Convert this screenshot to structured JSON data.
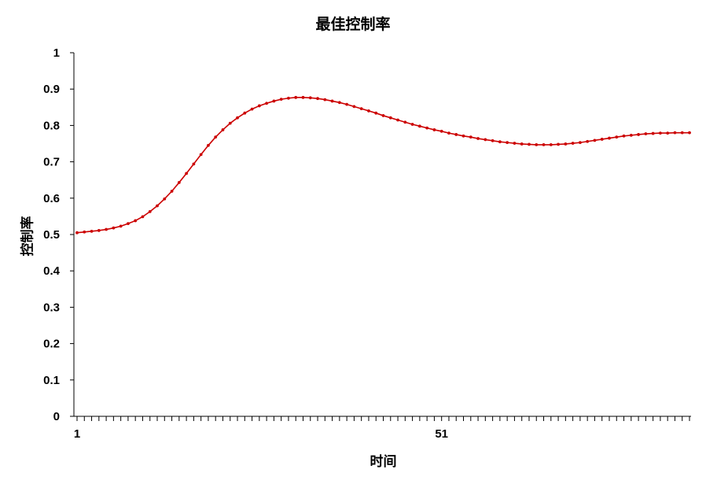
{
  "chart_data": {
    "type": "line",
    "title": "最佳控制率",
    "xlabel": "时间",
    "ylabel": "控制率",
    "ylim": [
      0,
      1
    ],
    "y_ticks": [
      "0",
      "0.1",
      "0.2",
      "0.3",
      "0.4",
      "0.5",
      "0.6",
      "0.7",
      "0.8",
      "0.9",
      "1"
    ],
    "x_ticks_labeled": [
      "1",
      "51"
    ],
    "xlim": [
      1,
      85
    ],
    "grid": false,
    "series": [
      {
        "color": "#cc0000",
        "x": [
          1,
          2,
          3,
          4,
          5,
          6,
          7,
          8,
          9,
          10,
          11,
          12,
          13,
          14,
          15,
          16,
          17,
          18,
          19,
          20,
          21,
          22,
          23,
          24,
          25,
          26,
          27,
          28,
          29,
          30,
          31,
          32,
          33,
          34,
          35,
          36,
          37,
          38,
          39,
          40,
          41,
          42,
          43,
          44,
          45,
          46,
          47,
          48,
          49,
          50,
          51,
          52,
          53,
          54,
          55,
          56,
          57,
          58,
          59,
          60,
          61,
          62,
          63,
          64,
          65,
          66,
          67,
          68,
          69,
          70,
          71,
          72,
          73,
          74,
          75,
          76,
          77,
          78,
          79,
          80,
          81,
          82,
          83,
          84,
          85
        ],
        "values": [
          0.505,
          0.507,
          0.509,
          0.511,
          0.514,
          0.518,
          0.523,
          0.53,
          0.538,
          0.549,
          0.563,
          0.579,
          0.598,
          0.619,
          0.643,
          0.668,
          0.694,
          0.72,
          0.745,
          0.768,
          0.788,
          0.806,
          0.821,
          0.834,
          0.845,
          0.854,
          0.861,
          0.867,
          0.872,
          0.875,
          0.877,
          0.877,
          0.876,
          0.874,
          0.871,
          0.867,
          0.863,
          0.858,
          0.852,
          0.846,
          0.84,
          0.834,
          0.827,
          0.821,
          0.815,
          0.809,
          0.803,
          0.798,
          0.793,
          0.788,
          0.784,
          0.779,
          0.775,
          0.771,
          0.768,
          0.764,
          0.761,
          0.758,
          0.755,
          0.753,
          0.751,
          0.749,
          0.748,
          0.747,
          0.747,
          0.747,
          0.748,
          0.749,
          0.751,
          0.753,
          0.756,
          0.759,
          0.762,
          0.765,
          0.768,
          0.771,
          0.773,
          0.775,
          0.777,
          0.778,
          0.779,
          0.779,
          0.78,
          0.78,
          0.78
        ]
      }
    ]
  }
}
